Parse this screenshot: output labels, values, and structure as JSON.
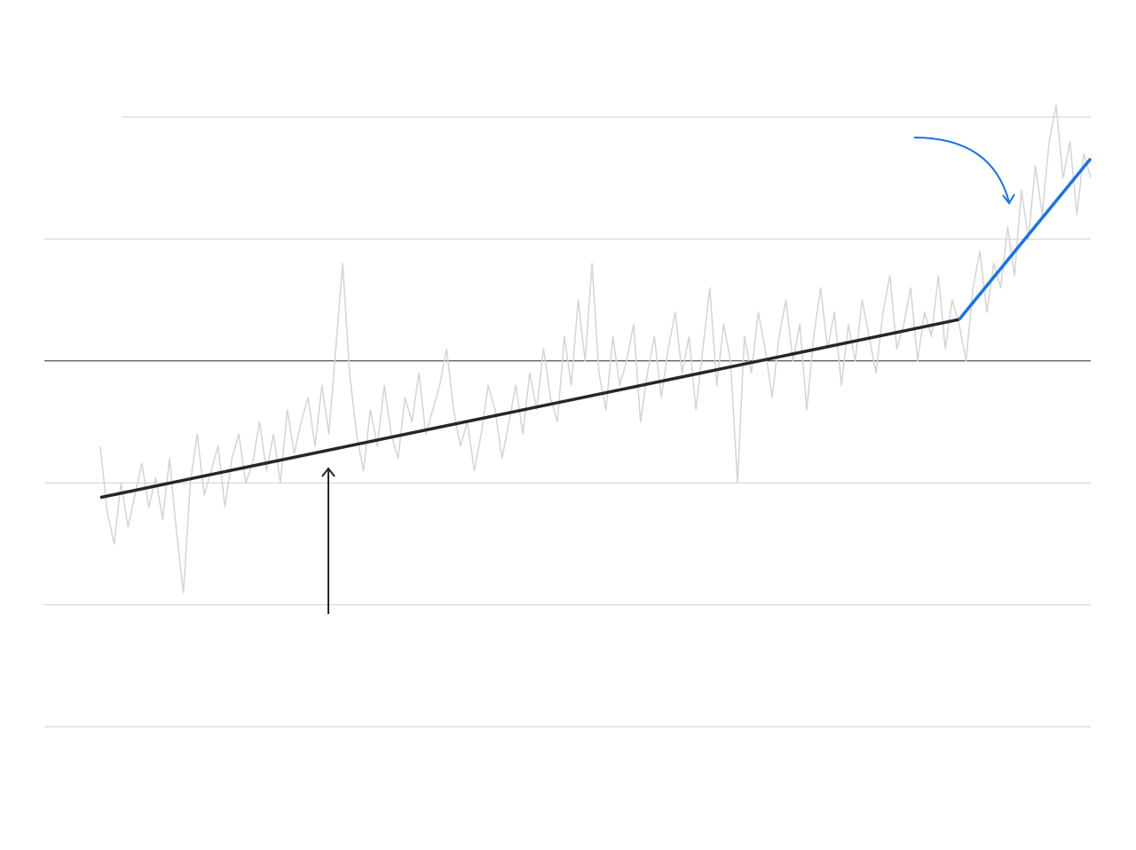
{
  "chart_data": {
    "type": "line",
    "xlim": [
      0,
      143
    ],
    "ylim": [
      -1.5,
      1.0
    ],
    "yticks": [
      -1.5,
      -1.0,
      -0.5,
      0,
      0.5,
      1.0
    ],
    "grid": true,
    "series": [
      {
        "color": "#d4d4d4",
        "x": [
          0,
          1,
          2,
          3,
          4,
          5,
          6,
          7,
          8,
          9,
          10,
          11,
          12,
          13,
          14,
          15,
          16,
          17,
          18,
          19,
          20,
          21,
          22,
          23,
          24,
          25,
          26,
          27,
          28,
          29,
          30,
          31,
          32,
          33,
          34,
          35,
          36,
          37,
          38,
          39,
          40,
          41,
          42,
          43,
          44,
          45,
          46,
          47,
          48,
          49,
          50,
          51,
          52,
          53,
          54,
          55,
          56,
          57,
          58,
          59,
          60,
          61,
          62,
          63,
          64,
          65,
          66,
          67,
          68,
          69,
          70,
          71,
          72,
          73,
          74,
          75,
          76,
          77,
          78,
          79,
          80,
          81,
          82,
          83,
          84,
          85,
          86,
          87,
          88,
          89,
          90,
          91,
          92,
          93,
          94,
          95,
          96,
          97,
          98,
          99,
          100,
          101,
          102,
          103,
          104,
          105,
          106,
          107,
          108,
          109,
          110,
          111,
          112,
          113,
          114,
          115,
          116,
          117,
          118,
          119,
          120,
          121,
          122,
          123,
          124,
          125,
          126,
          127,
          128,
          129,
          130,
          131,
          132,
          133,
          134,
          135,
          136,
          137,
          138,
          139,
          140,
          141,
          142,
          143
        ],
        "values": [
          -0.35,
          -0.62,
          -0.75,
          -0.5,
          -0.68,
          -0.55,
          -0.42,
          -0.6,
          -0.48,
          -0.65,
          -0.4,
          -0.7,
          -0.95,
          -0.5,
          -0.3,
          -0.55,
          -0.45,
          -0.35,
          -0.6,
          -0.4,
          -0.3,
          -0.5,
          -0.42,
          -0.25,
          -0.45,
          -0.3,
          -0.5,
          -0.2,
          -0.38,
          -0.25,
          -0.15,
          -0.35,
          -0.1,
          -0.3,
          0.05,
          0.4,
          -0.05,
          -0.3,
          -0.45,
          -0.2,
          -0.35,
          -0.1,
          -0.3,
          -0.4,
          -0.15,
          -0.25,
          -0.05,
          -0.3,
          -0.2,
          -0.1,
          0.05,
          -0.2,
          -0.35,
          -0.25,
          -0.45,
          -0.3,
          -0.1,
          -0.2,
          -0.4,
          -0.25,
          -0.1,
          -0.3,
          -0.05,
          -0.2,
          0.05,
          -0.15,
          -0.25,
          0.1,
          -0.1,
          0.25,
          0.0,
          0.4,
          -0.05,
          -0.2,
          0.1,
          -0.1,
          0.0,
          0.15,
          -0.25,
          -0.05,
          0.1,
          -0.15,
          0.05,
          0.2,
          -0.05,
          0.1,
          -0.2,
          0.05,
          0.3,
          -0.1,
          0.15,
          0.0,
          -0.5,
          0.1,
          -0.05,
          0.2,
          0.05,
          -0.15,
          0.1,
          0.25,
          0.0,
          0.15,
          -0.2,
          0.1,
          0.3,
          0.05,
          0.2,
          -0.1,
          0.15,
          0.0,
          0.25,
          0.1,
          -0.05,
          0.2,
          0.35,
          0.05,
          0.15,
          0.3,
          0.0,
          0.2,
          0.1,
          0.35,
          0.05,
          0.25,
          0.15,
          0.0,
          0.3,
          0.45,
          0.2,
          0.4,
          0.3,
          0.55,
          0.35,
          0.7,
          0.5,
          0.8,
          0.6,
          0.9,
          1.05,
          0.75,
          0.9,
          0.6,
          0.85,
          0.75
        ]
      },
      {
        "color": "#262626",
        "x": [
          0,
          124
        ],
        "values": [
          -0.56,
          0.17
        ]
      },
      {
        "color": "#1a73e8",
        "x": [
          124,
          143
        ],
        "values": [
          0.17,
          0.83
        ]
      }
    ]
  }
}
